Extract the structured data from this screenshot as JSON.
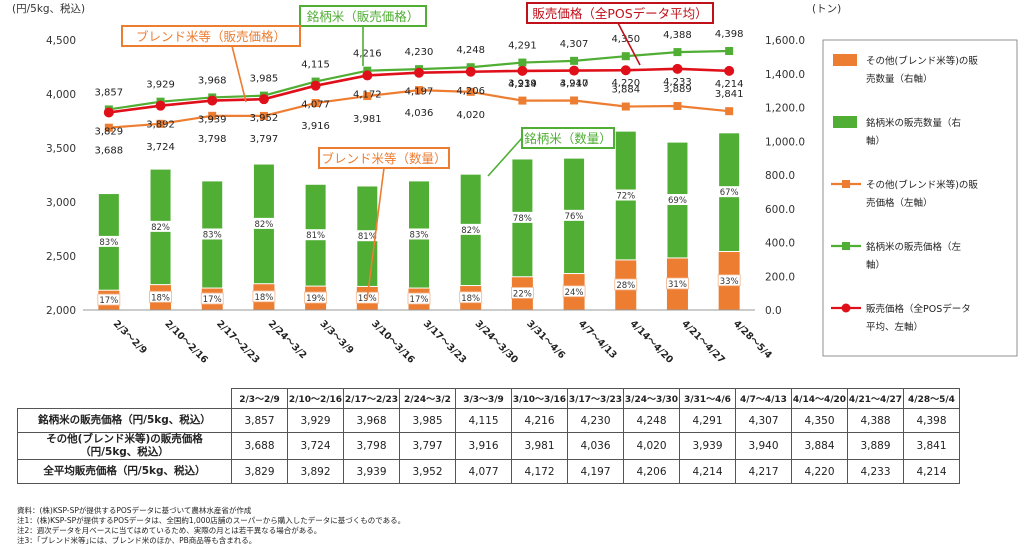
{
  "chart_data": {
    "type": "combo-bar-line",
    "left_axis_label": "(円/5kg、税込)",
    "right_axis_label": "(トン)",
    "left_ylim": [
      2000,
      4500
    ],
    "left_ticks": [
      "2,000",
      "2,500",
      "3,000",
      "3,500",
      "4,000",
      "4,500"
    ],
    "right_ylim": [
      0,
      1600
    ],
    "right_ticks": [
      "0.0",
      "200.0",
      "400.0",
      "600.0",
      "800.0",
      "1,000.0",
      "1,200.0",
      "1,400.0",
      "1,600.0"
    ],
    "categories": [
      "2/3～2/9",
      "2/10～2/16",
      "2/17～2/23",
      "2/24～3/2",
      "3/3～3/9",
      "3/10～3/16",
      "3/17～3/23",
      "3/24～3/30",
      "3/31～4/6",
      "4/7～4/13",
      "4/14～4/20",
      "4/21～4/27",
      "4/28～5/4"
    ],
    "bar_total_tons": [
      690,
      835,
      765,
      865,
      745,
      735,
      765,
      805,
      895,
      900,
      1060,
      995,
      1050
    ],
    "bar_blend_share_pct": [
      17,
      18,
      17,
      18,
      19,
      19,
      17,
      18,
      22,
      24,
      28,
      31,
      33
    ],
    "bar_brand_share_pct": [
      83,
      82,
      83,
      82,
      81,
      81,
      83,
      82,
      78,
      76,
      72,
      69,
      67
    ],
    "series": [
      {
        "name": "銘柄米の販売価格(左軸)",
        "values": [
          3857,
          3929,
          3968,
          3985,
          4115,
          4216,
          4230,
          4248,
          4291,
          4307,
          4350,
          4388,
          4398
        ]
      },
      {
        "name": "その他(ブレンド米等)の販売価格(左軸)",
        "values": [
          3688,
          3724,
          3798,
          3797,
          3916,
          3981,
          4036,
          4020,
          3939,
          3940,
          3884,
          3889,
          3841
        ]
      },
      {
        "name": "販売価格(全POSデータ平均、左軸)",
        "values": [
          3829,
          3892,
          3939,
          3952,
          4077,
          4172,
          4197,
          4206,
          4214,
          4217,
          4220,
          4233,
          4214
        ]
      }
    ],
    "annotations": [
      "銘柄米（販売価格）",
      "販売価格（全POSデータ平均）",
      "ブレンド米等（販売価格）",
      "ブレンド米等（数量）",
      "銘柄米（数量）"
    ],
    "legend": {
      "placement": "right",
      "items": [
        {
          "lines": [
            "その他(ブレンド米等)の販",
            "売数量（右軸）"
          ],
          "kind": "bar",
          "color": "#ed7d31"
        },
        {
          "lines": [
            "銘柄米の販売数量（右",
            "軸）"
          ],
          "kind": "bar",
          "color": "#4fae33"
        },
        {
          "lines": [
            "その他(ブレンド米等)の販",
            "売価格（左軸）"
          ],
          "kind": "line",
          "color": "#ed7d31"
        },
        {
          "lines": [
            "銘柄米の販売価格（左",
            "軸）"
          ],
          "kind": "line",
          "color": "#4fae33"
        },
        {
          "lines": [
            "販売価格（全POSデータ",
            "平均、左軸）"
          ],
          "kind": "line",
          "color": "#e0101a"
        }
      ]
    },
    "colors": {
      "brand": "#4fae33",
      "blend": "#ed7d31",
      "average": "#e0101a",
      "blend_label_border": "#f2b48c"
    }
  },
  "table": {
    "headers": [
      "2/3～2/9",
      "2/10～2/16",
      "2/17～2/23",
      "2/24～3/2",
      "3/3～3/9",
      "3/10～3/16",
      "3/17～3/23",
      "3/24～3/30",
      "3/31～4/6",
      "4/7～4/13",
      "4/14～4/20",
      "4/21～4/27",
      "4/28～5/4"
    ],
    "rows": [
      {
        "label": [
          "銘柄米の販売価格（円/5kg、税込）"
        ],
        "values": [
          "3,857",
          "3,929",
          "3,968",
          "3,985",
          "4,115",
          "4,216",
          "4,230",
          "4,248",
          "4,291",
          "4,307",
          "4,350",
          "4,388",
          "4,398"
        ]
      },
      {
        "label": [
          "その他(ブレンド米等)の販売価格",
          "（円/5kg、税込）"
        ],
        "values": [
          "3,688",
          "3,724",
          "3,798",
          "3,797",
          "3,916",
          "3,981",
          "4,036",
          "4,020",
          "3,939",
          "3,940",
          "3,884",
          "3,889",
          "3,841"
        ]
      },
      {
        "label": [
          "全平均販売価格（円/5kg、税込）"
        ],
        "values": [
          "3,829",
          "3,892",
          "3,939",
          "3,952",
          "4,077",
          "4,172",
          "4,197",
          "4,206",
          "4,214",
          "4,217",
          "4,220",
          "4,233",
          "4,214"
        ]
      }
    ]
  },
  "notes": [
    "資料：(株)KSP-SPが提供するPOSデータに基づいて農林水産省が作成",
    "注1：(株)KSP-SPが提供するPOSデータは、全国約1,000店舗のスーパーから購入したデータに基づくものである。",
    "注2：週次データを月ベースに当てはめているため、実際の月とは若干異なる場合がある。",
    "注3：｢ブレンド米等｣には、ブレンド米のほか、PB商品等も含まれる。"
  ]
}
